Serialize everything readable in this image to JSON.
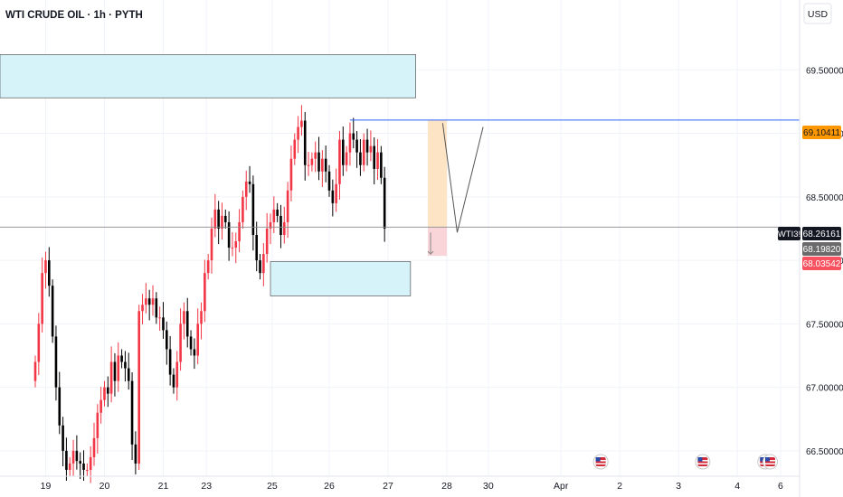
{
  "header": {
    "title": "WTI CRUDE OIL · 1h · PYTH"
  },
  "currency_button": {
    "label": "USD"
  },
  "colors": {
    "up": "#f23645",
    "down": "#000000",
    "zone": "#d6f3f9",
    "zone_border": "#3a3a3a",
    "h_line": "#2962ff",
    "current_line": "#8c8c8c",
    "target_box": "#fde4c4",
    "stop_box": "#f9d4d8",
    "label_orange": "#ff9800",
    "label_black": "#131722",
    "label_gray": "#6b6b6b",
    "label_red": "#f7525f"
  },
  "price_labels": {
    "resistance": "69.10411",
    "ticker": "WTI3!",
    "last": "68.26161",
    "bid": "68.19820",
    "ask": "68.03542"
  },
  "chart_data": {
    "type": "candlestick",
    "title": "WTI CRUDE OIL · 1h · PYTH",
    "ylim": [
      66.3,
      70.05
    ],
    "y_ticks": [
      66.5,
      67.0,
      67.5,
      68.0,
      68.5,
      69.0,
      69.5
    ],
    "y_tick_labels": [
      "66.50000",
      "67.00000",
      "67.50000",
      "68.00000",
      "68.50000",
      "69.00000",
      "69.50000"
    ],
    "x_ticks": [
      {
        "label": "19",
        "t": 3.0
      },
      {
        "label": "20",
        "t": 20.0
      },
      {
        "label": "21",
        "t": 37.0
      },
      {
        "label": "23",
        "t": 49.5
      },
      {
        "label": "25",
        "t": 68.5
      },
      {
        "label": "26",
        "t": 85.0
      },
      {
        "label": "27",
        "t": 102.0
      },
      {
        "label": "28",
        "t": 119.0
      },
      {
        "label": "30",
        "t": 131.0
      },
      {
        "label": "Apr",
        "t": 152.0
      },
      {
        "label": "2",
        "t": 169.0
      },
      {
        "label": "3",
        "t": 186.0
      },
      {
        "label": "4",
        "t": 203.0
      },
      {
        "label": "6",
        "t": 215.5
      }
    ],
    "time_range": [
      -10.2,
      221.0
    ],
    "series_close": [
      67.2,
      67.5,
      67.9,
      68.0,
      67.8,
      67.4,
      67.0,
      66.7,
      66.5,
      66.35,
      66.4,
      66.5,
      66.42,
      66.4,
      66.35,
      66.35,
      66.45,
      66.6,
      66.8,
      66.9,
      67.0,
      66.95,
      67.2,
      67.05,
      67.25,
      67.2,
      67.15,
      67.05,
      66.55,
      66.4,
      67.6,
      67.65,
      67.7,
      67.65,
      67.7,
      67.55,
      67.55,
      67.45,
      67.3,
      67.1,
      67.0,
      67.2,
      67.5,
      67.6,
      67.4,
      67.3,
      67.25,
      67.5,
      67.6,
      67.9,
      68.0,
      68.25,
      68.4,
      68.25,
      68.35,
      68.3,
      68.1,
      68.1,
      68.15,
      68.3,
      68.5,
      68.62,
      68.6,
      68.2,
      68.0,
      67.9,
      68.05,
      68.25,
      68.3,
      68.4,
      68.35,
      68.2,
      68.3,
      68.55,
      68.8,
      68.95,
      69.05,
      69.1,
      68.75,
      68.75,
      68.8,
      68.85,
      68.7,
      68.8,
      68.7,
      68.55,
      68.45,
      68.6,
      68.95,
      68.75,
      68.85,
      69.0,
      68.95,
      68.85,
      68.75,
      68.95,
      68.85,
      68.9,
      68.72,
      68.85,
      68.65,
      68.25
    ],
    "zones": [
      {
        "from_t": -10.2,
        "to_t": 110.0,
        "low": 69.28,
        "high": 69.62
      },
      {
        "from_t": 68.0,
        "to_t": 108.5,
        "low": 67.72,
        "high": 67.99
      }
    ],
    "resistance_line": {
      "value": 69.10411,
      "from_t": 91.0
    },
    "last_price": 68.26161,
    "trade_box": {
      "from_t": 113.5,
      "to_t": 119.0,
      "entry": 68.26161,
      "target": 69.10411,
      "stop": 68.03542
    },
    "projection_path": [
      {
        "t": 117.8,
        "v": 69.08
      },
      {
        "t": 122.0,
        "v": 68.22
      },
      {
        "t": 129.5,
        "v": 69.05
      }
    ],
    "event_markers_t": [
      163.5,
      193.0,
      211.0,
      212.5
    ]
  }
}
